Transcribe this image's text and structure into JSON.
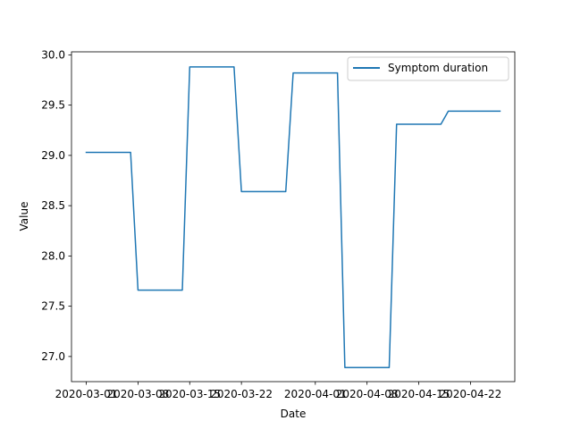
{
  "chart_data": {
    "type": "line",
    "title": "",
    "xlabel": "Date",
    "ylabel": "Value",
    "ylim": [
      26.75,
      30.03
    ],
    "xlim": [
      "2020-02-28",
      "2020-04-28"
    ],
    "x_ticks": [
      "2020-03-01",
      "2020-03-08",
      "2020-03-15",
      "2020-03-22",
      "2020-04-01",
      "2020-04-08",
      "2020-04-15",
      "2020-04-22"
    ],
    "y_ticks": [
      "27.0",
      "27.5",
      "28.0",
      "28.5",
      "29.0",
      "29.5",
      "30.0"
    ],
    "legend_position": "top-right",
    "grid": false,
    "series": [
      {
        "name": "Symptom duration",
        "color": "#1f77b4",
        "x": [
          "2020-03-01",
          "2020-03-07",
          "2020-03-08",
          "2020-03-14",
          "2020-03-15",
          "2020-03-21",
          "2020-03-22",
          "2020-03-28",
          "2020-03-29",
          "2020-04-04",
          "2020-04-05",
          "2020-04-11",
          "2020-04-12",
          "2020-04-18",
          "2020-04-19",
          "2020-04-26"
        ],
        "values": [
          29.03,
          29.03,
          27.66,
          27.66,
          29.88,
          29.88,
          28.64,
          28.64,
          29.82,
          29.82,
          26.89,
          26.89,
          29.31,
          29.31,
          29.44,
          29.44
        ]
      }
    ]
  }
}
